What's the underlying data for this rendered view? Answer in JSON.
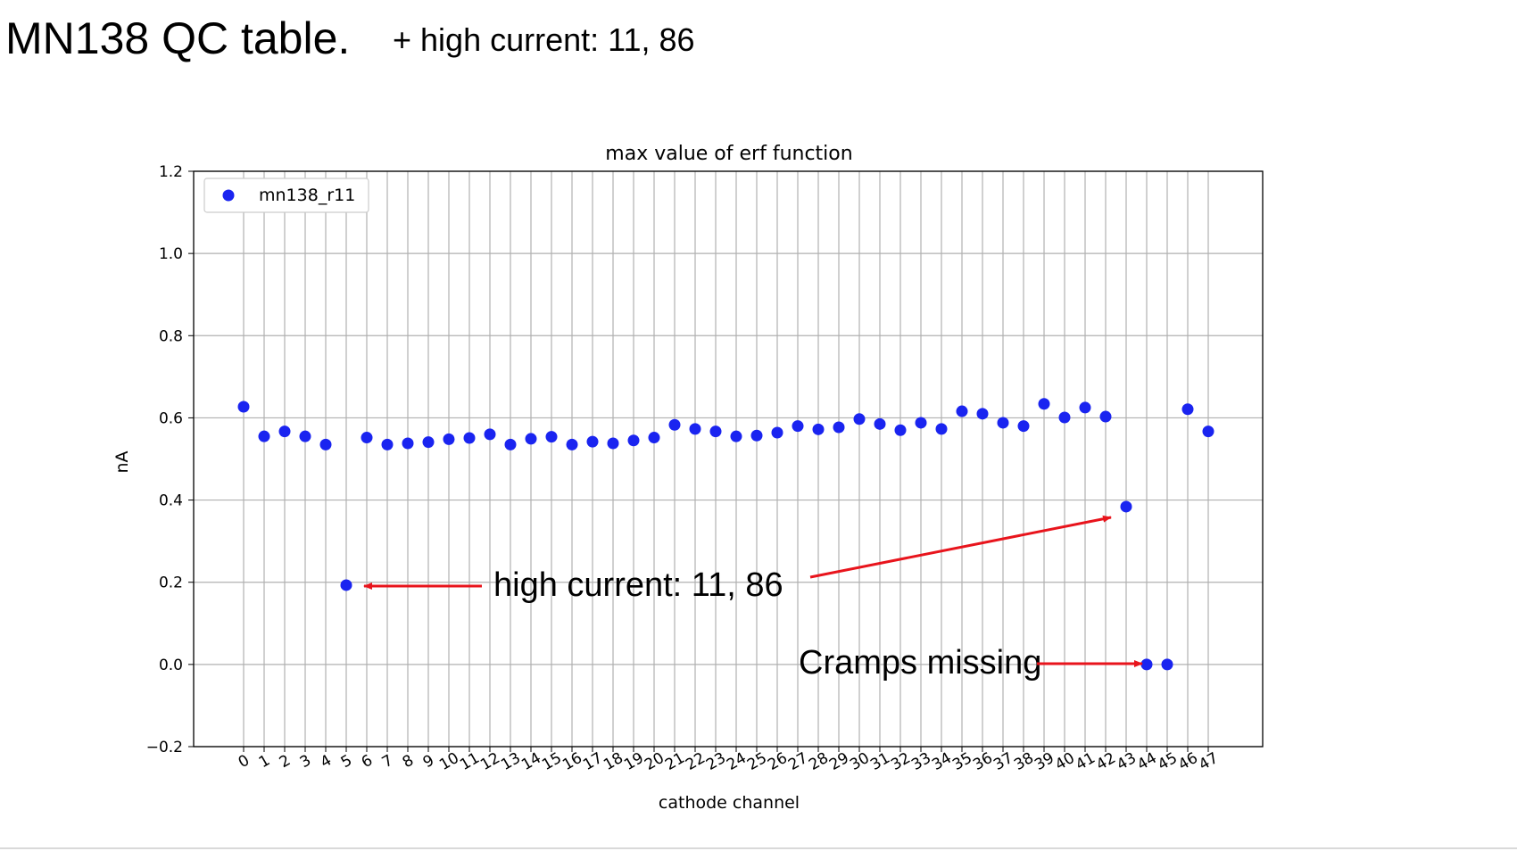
{
  "slide": {
    "title": "MN138 QC table.",
    "subtitle": "+ high current: 11, 86"
  },
  "annotations": {
    "high_current": "high current: 11, 86",
    "cramps_missing": "Cramps missing",
    "arrow_color": "#e8141c"
  },
  "chart_data": {
    "type": "scatter",
    "title": "max value of erf function",
    "xlabel": "cathode channel",
    "ylabel": "nA",
    "ylim": [
      -0.2,
      1.2
    ],
    "yticks": [
      -0.2,
      0.0,
      0.2,
      0.4,
      0.6,
      0.8,
      1.0,
      1.2
    ],
    "ytick_labels": [
      "−0.2",
      "0.0",
      "0.2",
      "0.4",
      "0.6",
      "0.8",
      "1.0",
      "1.2"
    ],
    "x_categories": [
      "0",
      "1",
      "2",
      "3",
      "4",
      "5",
      "6",
      "7",
      "8",
      "9",
      "10",
      "11",
      "12",
      "13",
      "14",
      "15",
      "16",
      "17",
      "18",
      "19",
      "20",
      "21",
      "22",
      "23",
      "24",
      "25",
      "26",
      "27",
      "28",
      "29",
      "30",
      "31",
      "32",
      "33",
      "34",
      "35",
      "36",
      "37",
      "38",
      "39",
      "40",
      "41",
      "42",
      "43",
      "44",
      "45",
      "46",
      "47"
    ],
    "grid": true,
    "legend_position": "top-left",
    "marker_color": "#1a24f0",
    "series": [
      {
        "name": "mn138_r11",
        "x": [
          0,
          1,
          2,
          3,
          4,
          5,
          6,
          7,
          8,
          9,
          10,
          11,
          12,
          13,
          14,
          15,
          16,
          17,
          18,
          19,
          20,
          21,
          22,
          23,
          24,
          25,
          26,
          27,
          28,
          29,
          30,
          31,
          32,
          33,
          34,
          35,
          36,
          37,
          38,
          39,
          40,
          41,
          42,
          43,
          44,
          45,
          46,
          47
        ],
        "y": [
          0.627,
          0.555,
          0.567,
          0.555,
          0.535,
          0.193,
          0.552,
          0.535,
          0.538,
          0.541,
          0.548,
          0.551,
          0.56,
          0.535,
          0.549,
          0.554,
          0.535,
          0.542,
          0.538,
          0.545,
          0.552,
          0.583,
          0.573,
          0.567,
          0.555,
          0.557,
          0.564,
          0.58,
          0.572,
          0.577,
          0.597,
          0.585,
          0.57,
          0.588,
          0.573,
          0.616,
          0.61,
          0.588,
          0.58,
          0.634,
          0.601,
          0.625,
          0.603,
          0.384,
          0.0,
          0.0,
          0.621,
          0.567
        ]
      }
    ]
  }
}
